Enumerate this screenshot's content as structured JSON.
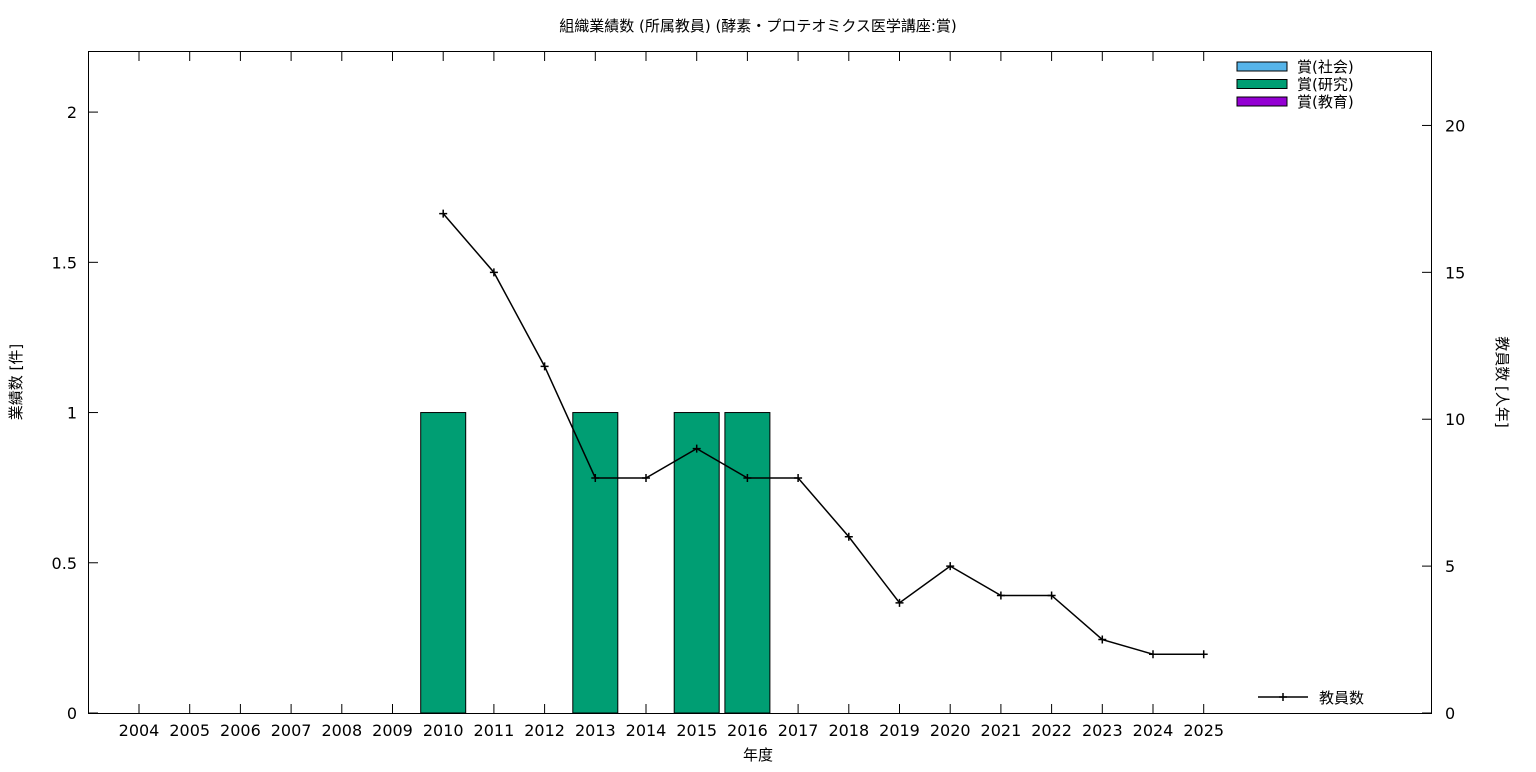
{
  "chart_data": {
    "type": "bar",
    "title": "組織業績数 (所属教員) (酵素・プロテオミクス医学講座:賞)",
    "xlabel": "年度",
    "ylabel": "業績数 [件]",
    "y2label": "教員数 [人年]",
    "categories": [
      "2004",
      "2005",
      "2006",
      "2007",
      "2008",
      "2009",
      "2010",
      "2011",
      "2012",
      "2013",
      "2014",
      "2015",
      "2016",
      "2017",
      "2018",
      "2019",
      "2020",
      "2021",
      "2022",
      "2023",
      "2024",
      "2025"
    ],
    "ylim": [
      0,
      2.2
    ],
    "yticks": [
      "0",
      "0.5",
      "1",
      "1.5",
      "2"
    ],
    "y2lim": [
      0,
      22.5
    ],
    "y2ticks": [
      "0",
      "5",
      "10",
      "15",
      "20"
    ],
    "grid": false,
    "legend_position": "top-right",
    "series": [
      {
        "name": "賞(社会)",
        "kind": "bar",
        "color": "#56b4e9",
        "values": [
          0,
          0,
          0,
          0,
          0,
          0,
          0,
          0,
          0,
          0,
          0,
          0,
          0,
          0,
          0,
          0,
          0,
          0,
          0,
          0,
          0,
          0
        ]
      },
      {
        "name": "賞(研究)",
        "kind": "bar",
        "color": "#009e73",
        "values": [
          0,
          0,
          0,
          0,
          0,
          0,
          1,
          0,
          0,
          1,
          0,
          1,
          1,
          0,
          0,
          0,
          0,
          0,
          0,
          0,
          0,
          0
        ]
      },
      {
        "name": "賞(教育)",
        "kind": "bar",
        "color": "#9400d3",
        "values": [
          0,
          0,
          0,
          0,
          0,
          0,
          0,
          0,
          0,
          0,
          0,
          0,
          0,
          0,
          0,
          0,
          0,
          0,
          0,
          0,
          0,
          0
        ]
      },
      {
        "name": "教員数",
        "kind": "line",
        "axis": "y2",
        "color": "#000000",
        "values": [
          null,
          null,
          null,
          null,
          null,
          null,
          17,
          15,
          11.8,
          8,
          8,
          9,
          8,
          8,
          6,
          3.75,
          5,
          4,
          4,
          2.5,
          2,
          2
        ]
      }
    ]
  }
}
